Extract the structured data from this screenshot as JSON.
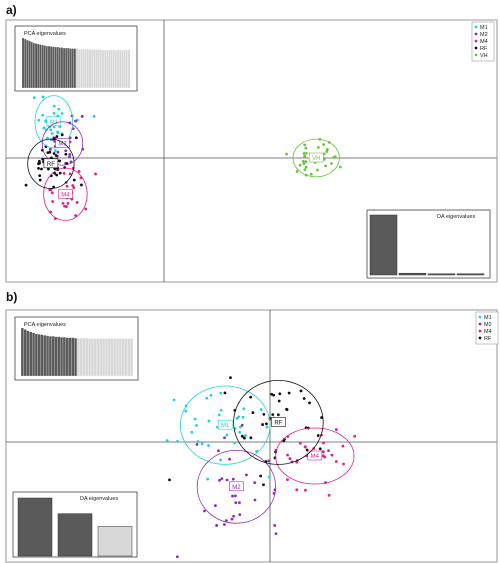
{
  "panels": [
    {
      "label": "a)",
      "pca_title": "PCA eigenvalues",
      "da_title": "DA eigenvalues",
      "pca_eigen": [
        1,
        0.98,
        0.96,
        0.94,
        0.92,
        0.9,
        0.89,
        0.88,
        0.87,
        0.86,
        0.85,
        0.84,
        0.84,
        0.83,
        0.83,
        0.82,
        0.82,
        0.81,
        0.81,
        0.8,
        0.8,
        0.8,
        0.79,
        0.79,
        0.79,
        0.79,
        0.78,
        0.78,
        0.78,
        0.78,
        0.78,
        0.77,
        0.77,
        0.77,
        0.77,
        0.77,
        0.77,
        0.76,
        0.76,
        0.76,
        0.76,
        0.76,
        0.76,
        0.76,
        0.76,
        0.76,
        0.76,
        0.76,
        0.76,
        0.76
      ],
      "pca_retained": 25,
      "da_eigen": [
        1.0,
        0.03,
        0.02,
        0.02
      ],
      "legend": [
        {
          "name": "M1",
          "color": "#1fd3dc"
        },
        {
          "name": "M2",
          "color": "#8b2bc0"
        },
        {
          "name": "M4",
          "color": "#e0208a"
        },
        {
          "name": "RF",
          "color": "#111111"
        },
        {
          "name": "VH",
          "color": "#6dc43a"
        }
      ],
      "groups": [
        {
          "name": "M1",
          "color": "#1fd3dc",
          "center": [
            -7.6,
            2.5
          ],
          "radius": [
            1.3,
            1.8
          ],
          "n": 30,
          "spread": [
            1.1,
            1.5
          ]
        },
        {
          "name": "M2",
          "color": "#8b2bc0",
          "center": [
            -7.0,
            1.0
          ],
          "radius": [
            1.4,
            1.5
          ],
          "n": 25,
          "spread": [
            1.2,
            1.3
          ]
        },
        {
          "name": "M4",
          "color": "#e0208a",
          "center": [
            -6.8,
            -2.5
          ],
          "radius": [
            1.5,
            1.8
          ],
          "n": 30,
          "spread": [
            1.3,
            1.6
          ]
        },
        {
          "name": "RF",
          "color": "#111111",
          "center": [
            -7.8,
            -0.4
          ],
          "radius": [
            1.6,
            1.7
          ],
          "n": 40,
          "spread": [
            1.4,
            1.5
          ]
        },
        {
          "name": "VH",
          "color": "#6dc43a",
          "center": [
            10.5,
            0.0
          ],
          "radius": [
            1.6,
            1.3
          ],
          "n": 35,
          "spread": [
            1.4,
            1.1
          ]
        }
      ]
    },
    {
      "label": "b)",
      "pca_title": "PCA eigenvalues",
      "da_title": "DA eigenvalues",
      "pca_eigen": [
        1,
        0.97,
        0.94,
        0.92,
        0.9,
        0.88,
        0.87,
        0.86,
        0.85,
        0.84,
        0.83,
        0.83,
        0.82,
        0.82,
        0.81,
        0.81,
        0.8,
        0.8,
        0.8,
        0.79,
        0.79,
        0.79,
        0.79,
        0.79,
        0.78,
        0.78,
        0.78,
        0.78,
        0.78,
        0.78,
        0.78,
        0.78,
        0.78,
        0.78,
        0.78,
        0.78,
        0.78,
        0.78,
        0.78,
        0.78
      ],
      "pca_retained": 20,
      "da_eigen": [
        1.0,
        0.73,
        0.51
      ],
      "legend": [
        {
          "name": "M1",
          "color": "#1fd3dc"
        },
        {
          "name": "M2",
          "color": "#8b2bc0"
        },
        {
          "name": "M4",
          "color": "#e0208a"
        },
        {
          "name": "RF",
          "color": "#111111"
        }
      ],
      "groups": [
        {
          "name": "M1",
          "color": "#1fd3dc",
          "center": [
            -1.6,
            0.6
          ],
          "radius": [
            1.6,
            1.4
          ],
          "n": 35,
          "spread": [
            1.4,
            1.2
          ]
        },
        {
          "name": "M2",
          "color": "#8b2bc0",
          "center": [
            -1.2,
            -1.6
          ],
          "radius": [
            1.4,
            1.3
          ],
          "n": 30,
          "spread": [
            1.2,
            1.1
          ]
        },
        {
          "name": "M4",
          "color": "#e0208a",
          "center": [
            1.6,
            -0.5
          ],
          "radius": [
            1.4,
            1.0
          ],
          "n": 30,
          "spread": [
            1.2,
            0.9
          ]
        },
        {
          "name": "RF",
          "color": "#111111",
          "center": [
            0.3,
            0.7
          ],
          "radius": [
            1.6,
            1.5
          ],
          "n": 40,
          "spread": [
            1.4,
            1.3
          ]
        }
      ]
    }
  ]
}
